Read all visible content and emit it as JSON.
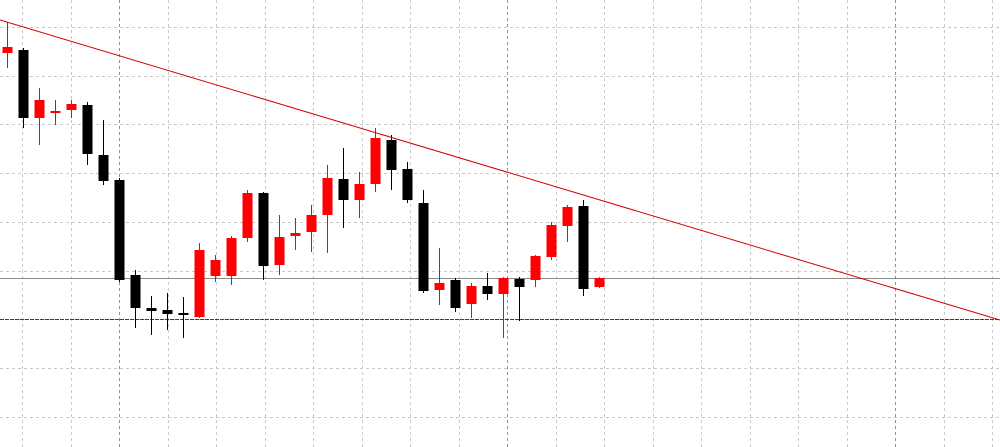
{
  "chart_data": {
    "type": "candlestick",
    "up_color": "#ff0000",
    "down_color": "#000000",
    "xlim": [
      -0.44,
      62.06
    ],
    "ylim": [
      0,
      447
    ],
    "grid": true,
    "open": [
      394,
      397,
      329,
      334,
      337,
      342,
      292,
      267,
      172,
      139,
      137,
      134,
      130,
      171,
      171,
      209,
      254,
      182,
      211,
      215,
      232,
      268,
      247,
      263,
      307,
      278,
      244,
      157,
      167,
      143,
      161,
      153,
      168,
      167,
      190,
      221,
      241,
      160
    ],
    "high": [
      425,
      399,
      359,
      347,
      347,
      345,
      327,
      269,
      177,
      151,
      154,
      150,
      204,
      192,
      211,
      257,
      255,
      232,
      229,
      242,
      282,
      299,
      275,
      319,
      312,
      285,
      257,
      199,
      169,
      164,
      174,
      170,
      170,
      192,
      225,
      242,
      247,
      170
    ],
    "low": [
      379,
      319,
      302,
      322,
      329,
      282,
      262,
      165,
      119,
      112,
      117,
      109,
      129,
      165,
      162,
      205,
      167,
      172,
      197,
      195,
      194,
      219,
      229,
      255,
      257,
      244,
      154,
      142,
      135,
      129,
      147,
      109,
      126,
      160,
      187,
      205,
      151,
      159
    ],
    "close": [
      400,
      329,
      347,
      336,
      343,
      293,
      266,
      167,
      139,
      136,
      133,
      132,
      197,
      187,
      209,
      254,
      181,
      210,
      214,
      232,
      269,
      247,
      263,
      309,
      277,
      247,
      156,
      164,
      139,
      161,
      153,
      169,
      160,
      191,
      222,
      240,
      158,
      169
    ],
    "trendline": {
      "color": "#d40000",
      "x": [
        -0.44,
        62.06
      ],
      "values": [
        427,
        127
      ]
    },
    "hlines": [
      {
        "value": 128,
        "color": "#d40000",
        "dashed": true
      },
      {
        "value": 169,
        "color": "#8a8a8a",
        "dashed": false
      }
    ]
  }
}
